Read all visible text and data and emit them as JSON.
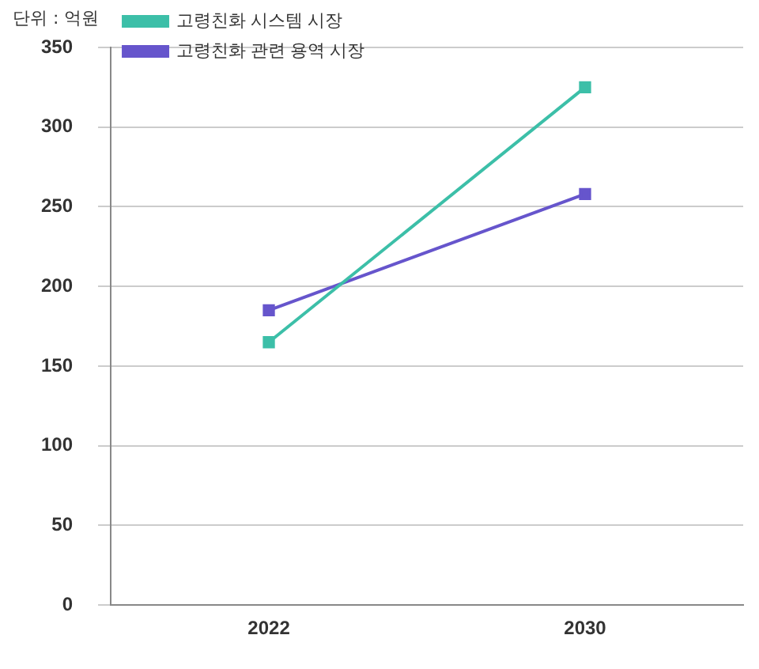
{
  "chart_data": {
    "type": "line",
    "ylabel": "단위 : 억원",
    "categories": [
      "2022",
      "2030"
    ],
    "series": [
      {
        "name": "고령친화 시스템 시장",
        "color": "#3cbfa8",
        "values": [
          165,
          325
        ]
      },
      {
        "name": "고령친화 관련 용역 시장",
        "color": "#6655cc",
        "values": [
          185,
          258
        ]
      }
    ],
    "ylim": [
      0,
      350
    ],
    "yticks": [
      0,
      50,
      100,
      150,
      200,
      250,
      300,
      350
    ],
    "grid": "y",
    "legend": "top left",
    "marker": "square",
    "line_style": "solid"
  }
}
